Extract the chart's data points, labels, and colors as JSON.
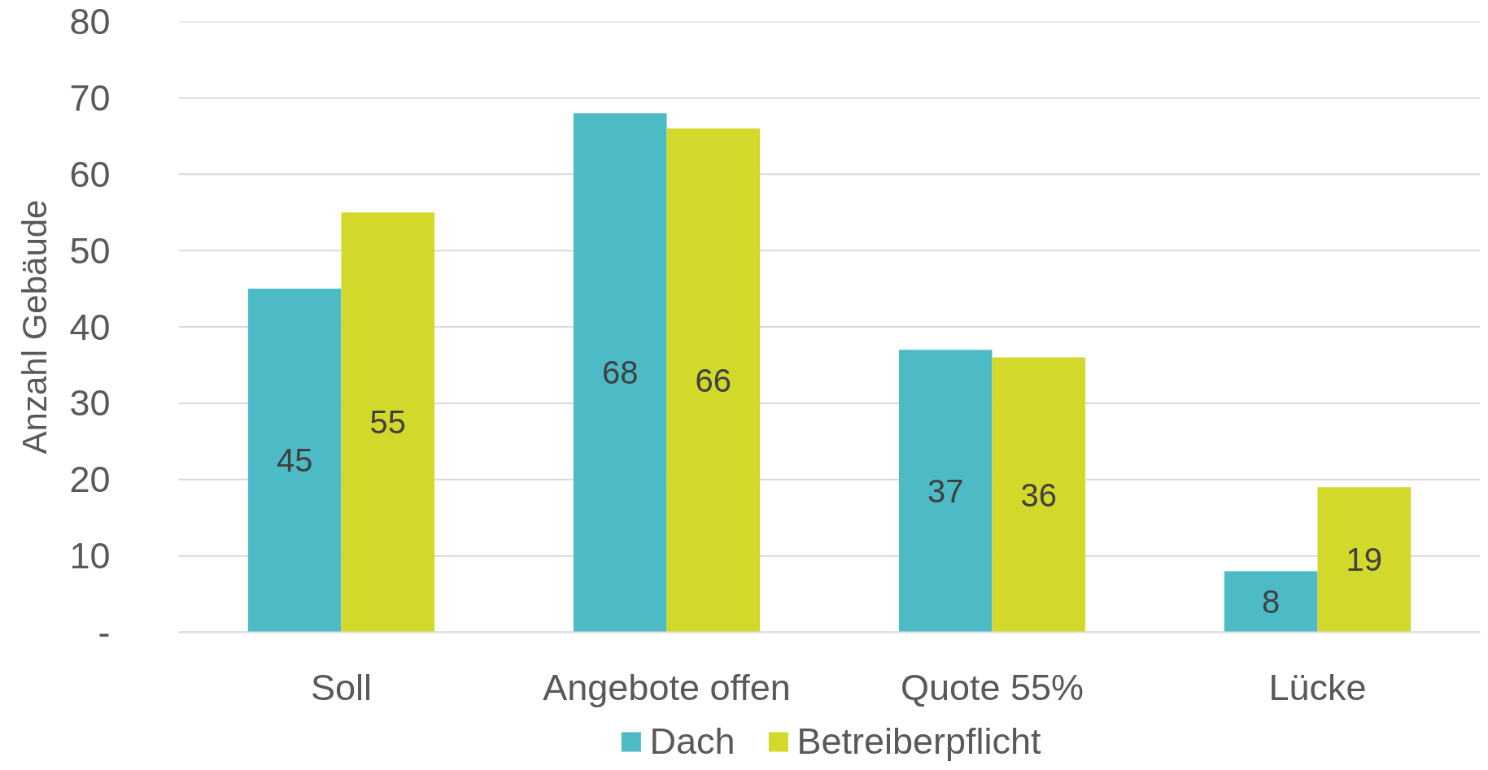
{
  "chart_data": {
    "type": "bar",
    "ylabel": "Anzahl Gebäude",
    "categories": [
      "Soll",
      "Angebote offen",
      "Quote 55%",
      "Lücke"
    ],
    "series": [
      {
        "name": "Dach",
        "color": "#4dbbc6",
        "values": [
          45,
          68,
          37,
          8
        ]
      },
      {
        "name": "Betreiberpflicht",
        "color": "#d3d92b",
        "values": [
          55,
          66,
          36,
          19
        ]
      }
    ],
    "ylim": [
      0,
      80
    ],
    "yticks": [
      {
        "value": 0,
        "label": "-"
      },
      10,
      20,
      30,
      40,
      50,
      60,
      70,
      80
    ],
    "grid": "y",
    "legend": "bottom",
    "data_labels": true
  }
}
